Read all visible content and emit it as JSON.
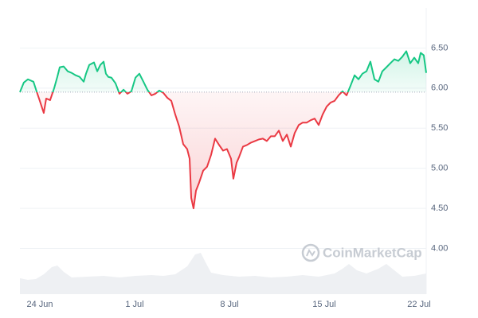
{
  "chart_data": {
    "type": "line",
    "watermark": "CoinMarketCap",
    "x": [
      22.53,
      22.82,
      23.12,
      23.53,
      23.76,
      24,
      24.29,
      24.47,
      24.76,
      25.06,
      25.29,
      25.47,
      25.76,
      26.06,
      26.35,
      26.65,
      26.94,
      27.24,
      27.41,
      27.65,
      28,
      28.24,
      28.47,
      28.71,
      28.88,
      29.06,
      29.29,
      29.59,
      29.88,
      30.18,
      30.47,
      30.76,
      31.06,
      31.35,
      31.65,
      31.94,
      32.24,
      32.53,
      32.82,
      33.12,
      33.41,
      33.71,
      34,
      34.29,
      34.59,
      34.88,
      35.06,
      35.18,
      35.35,
      35.53,
      35.76,
      36.06,
      36.35,
      36.65,
      36.94,
      37.24,
      37.53,
      37.82,
      38.12,
      38.29,
      38.53,
      38.71,
      39,
      39.29,
      39.59,
      39.88,
      40.18,
      40.47,
      40.76,
      41.06,
      41.35,
      41.65,
      41.94,
      42.24,
      42.53,
      42.82,
      43.12,
      43.41,
      43.71,
      44,
      44.29,
      44.59,
      44.88,
      45.18,
      45.47,
      45.76,
      46.06,
      46.35,
      46.65,
      46.94,
      47.24,
      47.53,
      47.82,
      48.12,
      48.41,
      48.71,
      49,
      49.29,
      49.59,
      49.88,
      50.18,
      50.47,
      50.76,
      51.06,
      51.35,
      51.65,
      51.94,
      52.12,
      52.35,
      52.53
    ],
    "values": [
      5.95,
      6.07,
      6.11,
      6.08,
      5.96,
      5.84,
      5.69,
      5.87,
      5.85,
      6.0,
      6.14,
      6.26,
      6.27,
      6.21,
      6.19,
      6.16,
      6.14,
      6.08,
      6.18,
      6.29,
      6.32,
      6.21,
      6.29,
      6.33,
      6.18,
      6.14,
      6.13,
      6.06,
      5.93,
      5.98,
      5.93,
      5.96,
      6.13,
      6.18,
      6.08,
      5.98,
      5.91,
      5.93,
      5.97,
      5.94,
      5.88,
      5.84,
      5.67,
      5.52,
      5.3,
      5.24,
      5.12,
      4.63,
      4.5,
      4.72,
      4.82,
      4.97,
      5.02,
      5.17,
      5.37,
      5.29,
      5.22,
      5.24,
      5.12,
      4.87,
      5.07,
      5.14,
      5.27,
      5.29,
      5.32,
      5.34,
      5.36,
      5.37,
      5.34,
      5.4,
      5.4,
      5.47,
      5.34,
      5.42,
      5.27,
      5.44,
      5.54,
      5.57,
      5.57,
      5.6,
      5.62,
      5.54,
      5.67,
      5.77,
      5.82,
      5.84,
      5.91,
      5.96,
      5.91,
      6.03,
      6.16,
      6.11,
      6.18,
      6.21,
      6.33,
      6.11,
      6.08,
      6.21,
      6.26,
      6.31,
      6.36,
      6.34,
      6.39,
      6.46,
      6.31,
      6.38,
      6.31,
      6.44,
      6.41,
      6.19
    ],
    "baseline": 5.95,
    "color_above": "#16c784",
    "color_below": "#ea3943",
    "xlim": [
      22.53,
      52.53
    ],
    "xticks": [
      {
        "value": 24,
        "label": "24 Jun"
      },
      {
        "value": 31,
        "label": "1 Jul"
      },
      {
        "value": 38,
        "label": "8 Jul"
      },
      {
        "value": 45,
        "label": "15 Jul"
      },
      {
        "value": 52,
        "label": "22 Jul"
      }
    ],
    "ylim": [
      3.43,
      7.0
    ],
    "yticks": [
      {
        "value": 4,
        "label": "4.00"
      },
      {
        "value": 4.5,
        "label": "4.50"
      },
      {
        "value": 5,
        "label": "5.00"
      },
      {
        "value": 5.5,
        "label": "5.50"
      },
      {
        "value": 6,
        "label": "6.00"
      },
      {
        "value": 6.5,
        "label": "6.50"
      }
    ],
    "grid": true
  }
}
